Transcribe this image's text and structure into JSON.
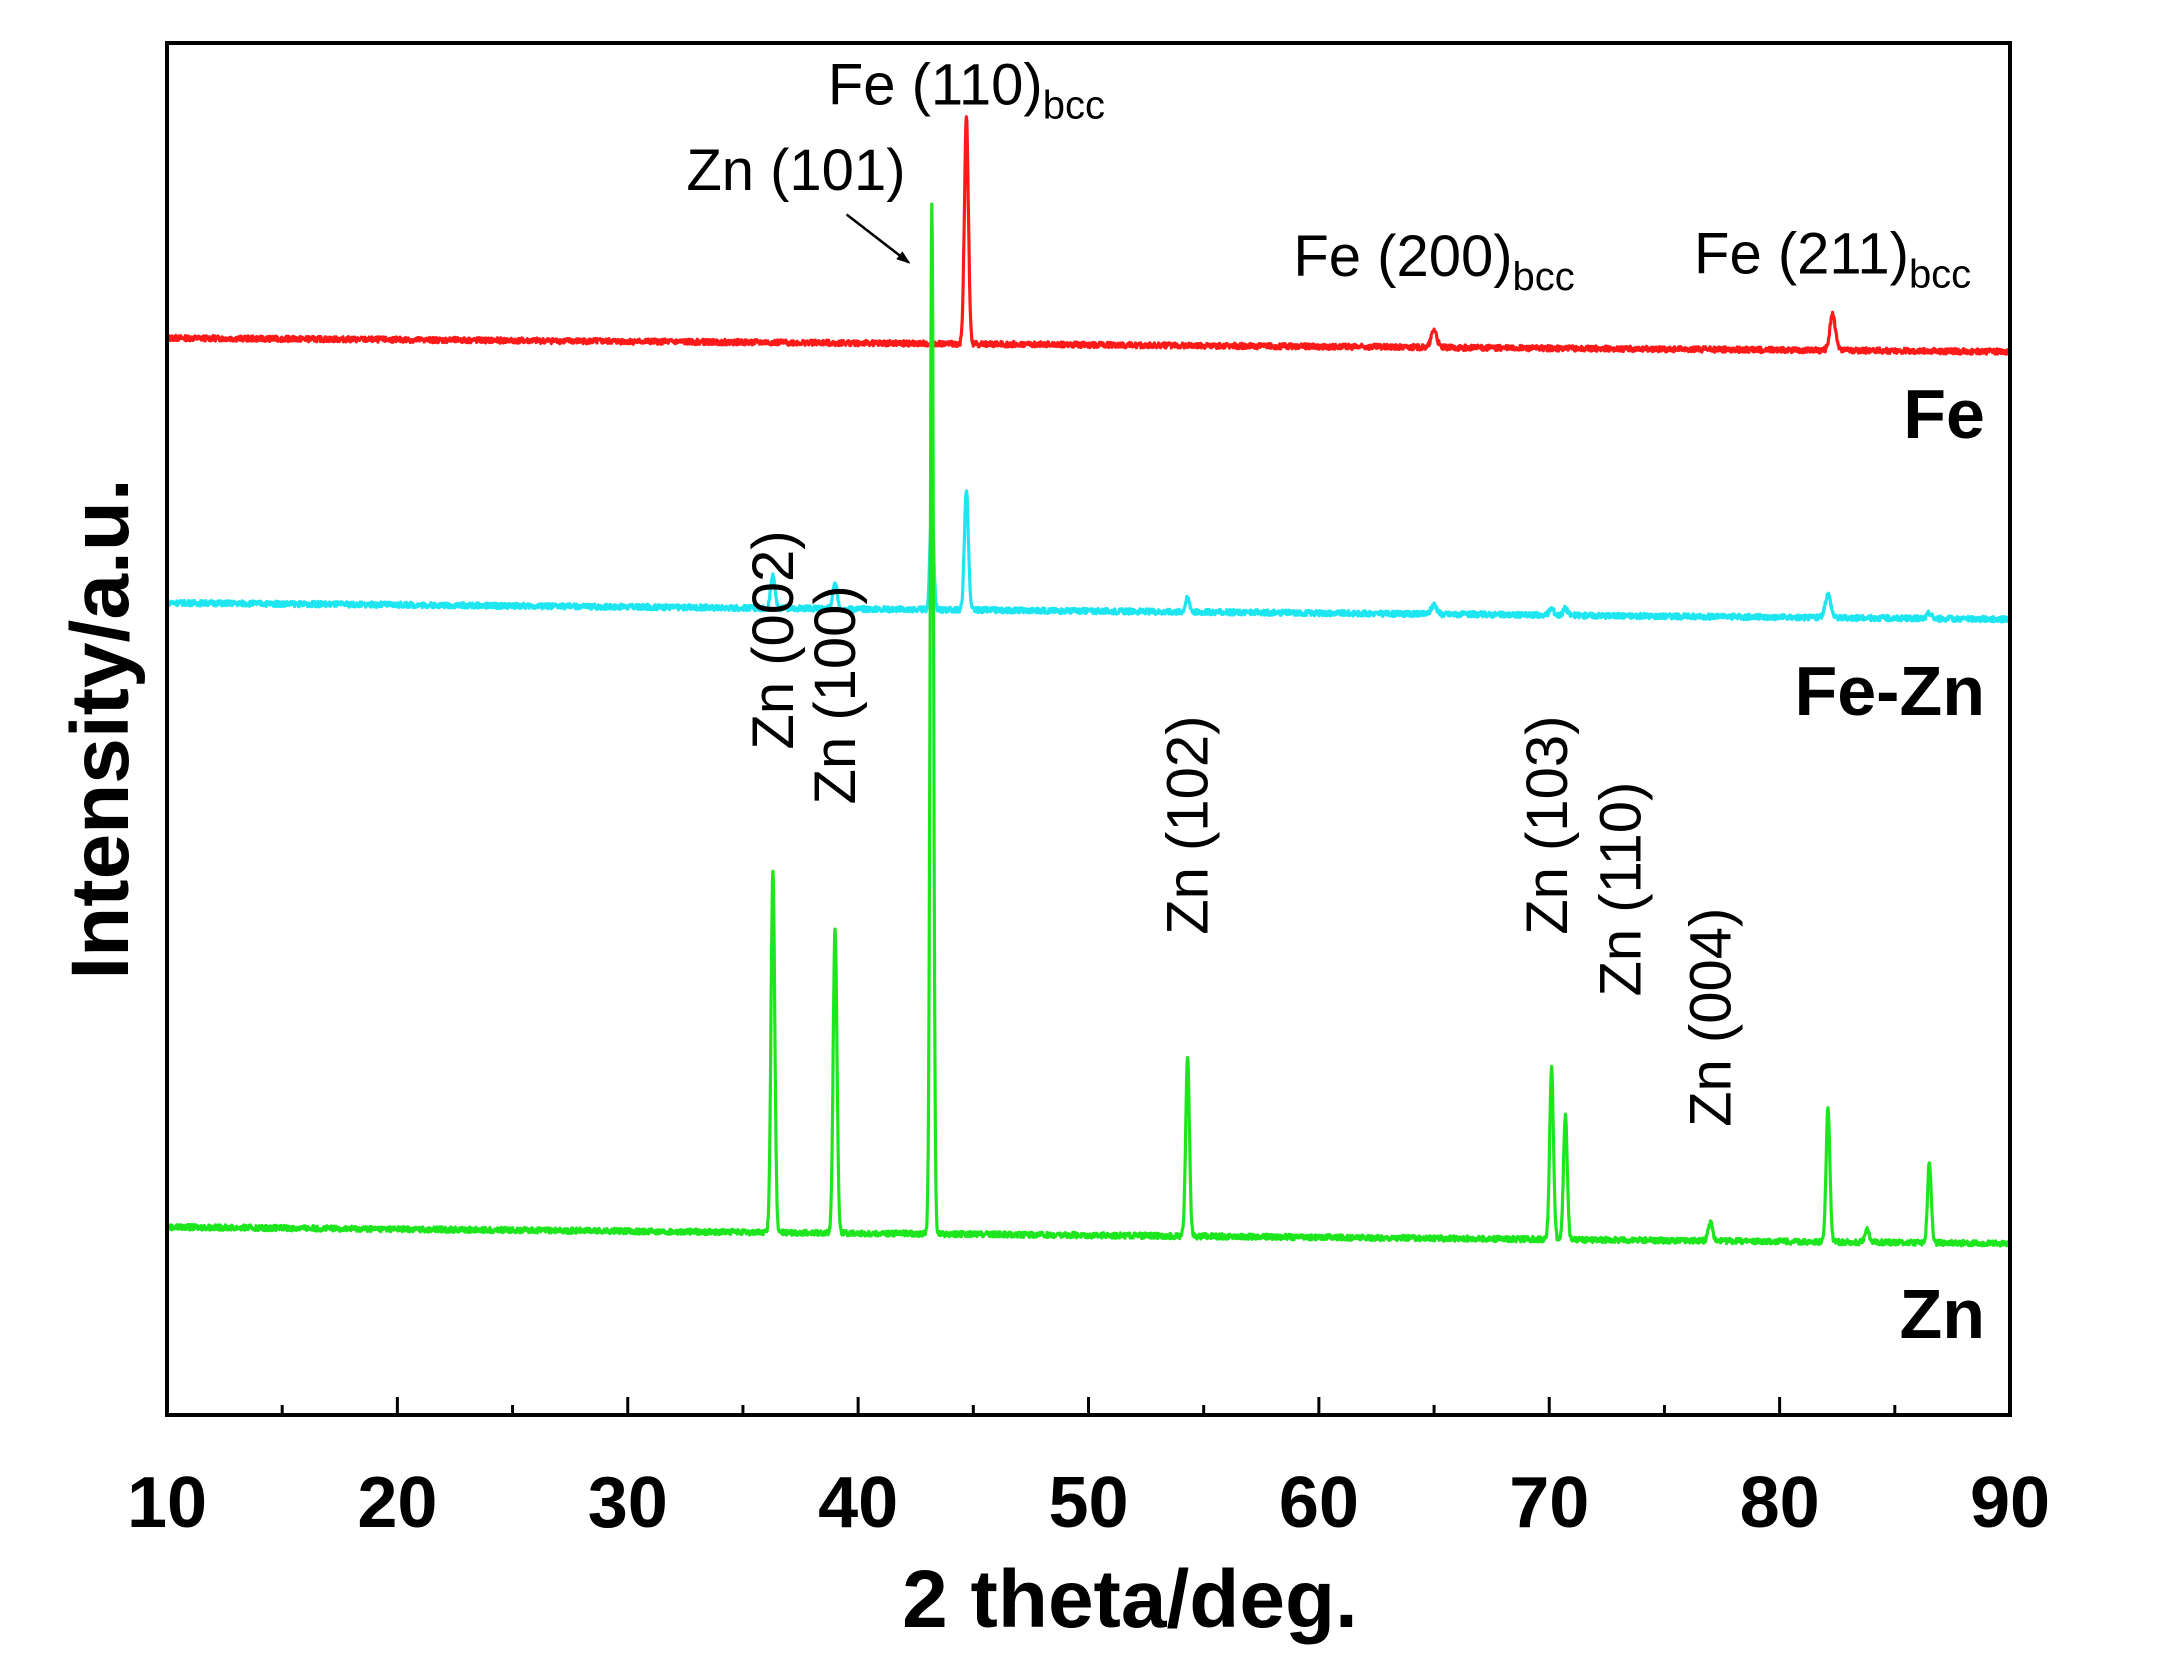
{
  "chart_data": {
    "type": "line",
    "xlabel": "2 theta/deg.",
    "ylabel": "Intensity/a.u.",
    "xlim": [
      10,
      90
    ],
    "ylim": [
      0,
      1
    ],
    "x_ticks": [
      "10",
      "20",
      "30",
      "40",
      "50",
      "60",
      "70",
      "80",
      "90"
    ],
    "y_ticks": [],
    "legend": "none",
    "grid": false,
    "series": [
      {
        "name": "Fe",
        "label": "Fe",
        "color": "#ff1a1a",
        "baseline_start": 0.785,
        "baseline_end": 0.775,
        "peaks": [
          {
            "x": 44.7,
            "height": 0.165,
            "width": 0.18
          },
          {
            "x": 65.0,
            "height": 0.013,
            "width": 0.25
          },
          {
            "x": 82.3,
            "height": 0.026,
            "width": 0.25
          }
        ]
      },
      {
        "name": "Fe-Zn",
        "label": "Fe-Zn",
        "color": "#1ee6f0",
        "baseline_start": 0.592,
        "baseline_end": 0.58,
        "peaks": [
          {
            "x": 36.3,
            "height": 0.024,
            "width": 0.2
          },
          {
            "x": 39.0,
            "height": 0.018,
            "width": 0.2
          },
          {
            "x": 43.2,
            "height": 0.082,
            "width": 0.16
          },
          {
            "x": 44.7,
            "height": 0.088,
            "width": 0.18
          },
          {
            "x": 54.3,
            "height": 0.01,
            "width": 0.2
          },
          {
            "x": 65.0,
            "height": 0.007,
            "width": 0.25
          },
          {
            "x": 70.1,
            "height": 0.005,
            "width": 0.2
          },
          {
            "x": 70.7,
            "height": 0.005,
            "width": 0.2
          },
          {
            "x": 82.1,
            "height": 0.017,
            "width": 0.25
          },
          {
            "x": 86.5,
            "height": 0.004,
            "width": 0.2
          }
        ]
      },
      {
        "name": "Zn",
        "label": "Zn",
        "color": "#1ee61e",
        "baseline_start": 0.137,
        "baseline_end": 0.125,
        "peaks": [
          {
            "x": 36.3,
            "height": 0.262,
            "width": 0.17
          },
          {
            "x": 39.0,
            "height": 0.222,
            "width": 0.17
          },
          {
            "x": 43.2,
            "height": 0.75,
            "width": 0.15
          },
          {
            "x": 54.3,
            "height": 0.13,
            "width": 0.17
          },
          {
            "x": 70.1,
            "height": 0.125,
            "width": 0.17
          },
          {
            "x": 70.7,
            "height": 0.09,
            "width": 0.17
          },
          {
            "x": 77.0,
            "height": 0.013,
            "width": 0.2
          },
          {
            "x": 82.1,
            "height": 0.098,
            "width": 0.17
          },
          {
            "x": 83.8,
            "height": 0.009,
            "width": 0.2
          },
          {
            "x": 86.5,
            "height": 0.058,
            "width": 0.17
          }
        ]
      }
    ],
    "annotations": [
      {
        "text": "Fe (110)",
        "sub": "bcc",
        "x": 44.7,
        "y": 0.955,
        "orientation": "horizontal"
      },
      {
        "text": "Zn (101)",
        "sub": "",
        "x": 37.3,
        "y": 0.893,
        "orientation": "horizontal"
      },
      {
        "text": "Fe (200)",
        "sub": "bcc",
        "x": 65.0,
        "y": 0.83,
        "orientation": "horizontal"
      },
      {
        "text": "Fe (211)",
        "sub": "bcc",
        "x": 82.3,
        "y": 0.832,
        "orientation": "horizontal"
      },
      {
        "text": "Zn (002)",
        "sub": "",
        "x": 36.3,
        "y": 0.485,
        "orientation": "vertical"
      },
      {
        "text": "Zn (100)",
        "sub": "",
        "x": 39.0,
        "y": 0.445,
        "orientation": "vertical"
      },
      {
        "text": "Zn (102)",
        "sub": "",
        "x": 54.3,
        "y": 0.35,
        "orientation": "vertical"
      },
      {
        "text": "Zn (103)",
        "sub": "",
        "x": 69.9,
        "y": 0.35,
        "orientation": "vertical"
      },
      {
        "text": "Zn (110)",
        "sub": "",
        "x": 73.1,
        "y": 0.305,
        "orientation": "vertical"
      },
      {
        "text": "Zn (004)",
        "sub": "",
        "x": 77.0,
        "y": 0.21,
        "orientation": "vertical"
      }
    ],
    "arrow": {
      "from_x": 39.5,
      "from_y": 0.875,
      "to_x": 42.2,
      "to_y": 0.84
    }
  }
}
